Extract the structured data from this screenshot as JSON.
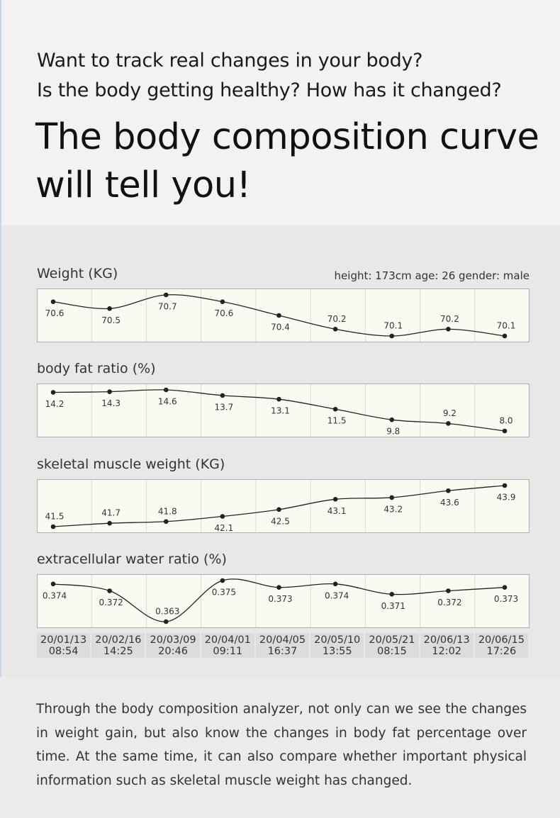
{
  "header": {
    "lines": [
      "Want to track real changes in your body?",
      "Is the body getting healthy? How has it changed?"
    ],
    "headline": [
      "The body composition curve",
      "will tell you!"
    ]
  },
  "chart_data": [
    {
      "type": "line",
      "title": "Weight (KG)",
      "subtitle": "height: 173cm  age: 26  gender: male",
      "values": [
        70.6,
        70.5,
        70.7,
        70.6,
        70.4,
        70.2,
        70.1,
        70.2,
        70.1
      ],
      "color": "#222222"
    },
    {
      "type": "line",
      "title": "body fat ratio (%)",
      "values": [
        14.2,
        14.3,
        14.6,
        13.7,
        13.1,
        11.5,
        9.8,
        9.2,
        8.0
      ],
      "value_labels": [
        "14.2",
        "14.3",
        "14.6",
        "13.7",
        "13.1",
        "11.5",
        "9.8",
        "9.2",
        "8.0"
      ],
      "color": "#222222"
    },
    {
      "type": "line",
      "title": "skeletal muscle weight (KG)",
      "values": [
        41.5,
        41.7,
        41.8,
        42.1,
        42.5,
        43.1,
        43.2,
        43.6,
        43.9
      ],
      "color": "#222222"
    },
    {
      "type": "line",
      "title": "extracellular water ratio (%)",
      "values": [
        0.374,
        0.372,
        0.363,
        0.375,
        0.373,
        0.374,
        0.371,
        0.372,
        0.373
      ],
      "color": "#222222",
      "categories": [
        "20/01/13\n08:54",
        "20/02/16\n14:25",
        "20/03/09\n20:46",
        "20/04/01\n09:11",
        "20/04/05\n16:37",
        "20/05/10\n13:55",
        "20/05/21\n08:15",
        "20/06/13\n12:02",
        "20/06/15\n17:26"
      ]
    }
  ],
  "footer": {
    "text": "Through the body composition analyzer, not only can we see the changes in weight gain, but also know the changes in body fat percentage over time. At the same time, it can also compare whether important physical information such as skeletal muscle weight has changed."
  }
}
